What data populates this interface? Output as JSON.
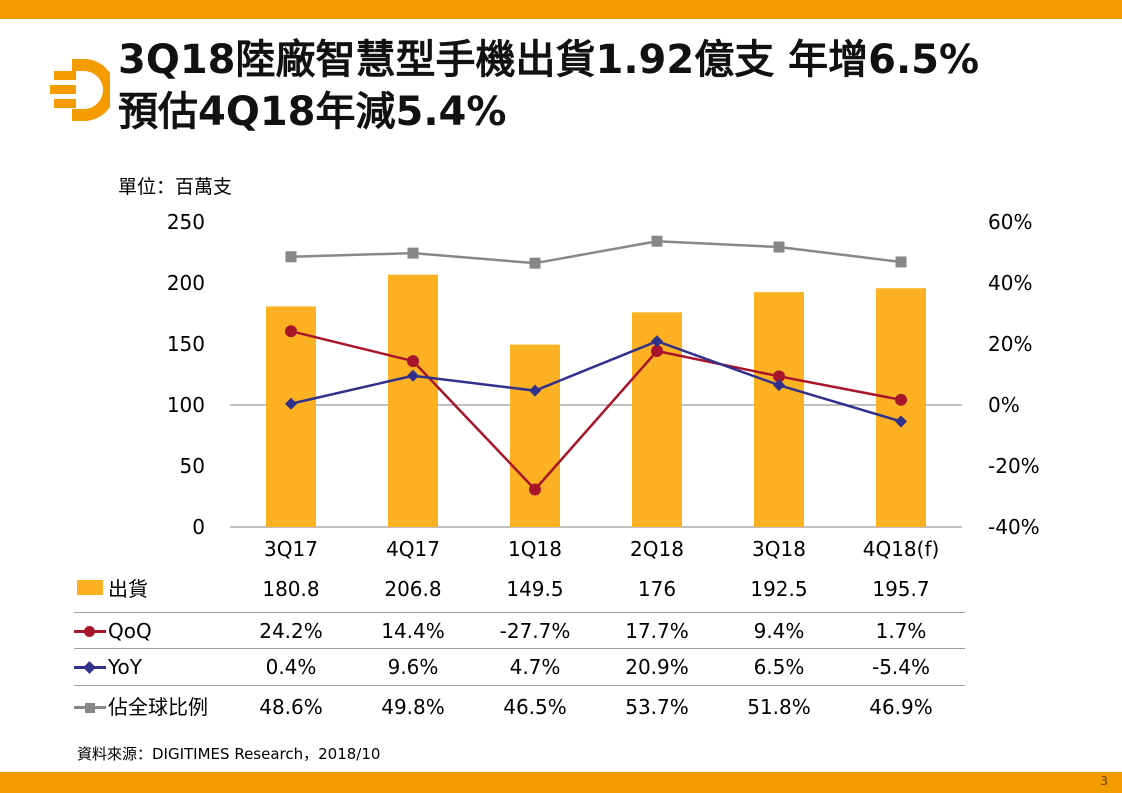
{
  "title_line1": "3Q18陸廠智慧型手機出貨1.92億支  年增6.5%",
  "title_line2": "預估4Q18年減5.4%",
  "unit": "單位：百萬支",
  "source": "資料來源：DIGITIMES Research，2018/10",
  "page_number": "3",
  "colors": {
    "brand": "#f49b00",
    "bar": "#fbb122",
    "qoq": "#a8152b",
    "yoy": "#31318c",
    "share": "#878787"
  },
  "chart_data": {
    "type": "bar",
    "categories": [
      "3Q17",
      "4Q17",
      "1Q18",
      "2Q18",
      "3Q18",
      "4Q18(f)"
    ],
    "left_axis": {
      "min": 0,
      "max": 250,
      "step": 50,
      "ticks": [
        "0",
        "50",
        "100",
        "150",
        "200",
        "250"
      ]
    },
    "right_axis": {
      "min": -40,
      "max": 60,
      "step": 20,
      "ticks": [
        "-40%",
        "-20%",
        "0%",
        "20%",
        "40%",
        "60%"
      ]
    },
    "legend_placement": "bottom-table",
    "series": [
      {
        "name": "出貨",
        "type": "bar",
        "axis": "left",
        "values": [
          180.8,
          206.8,
          149.5,
          176,
          192.5,
          195.7
        ],
        "labels": [
          "180.8",
          "206.8",
          "149.5",
          "176",
          "192.5",
          "195.7"
        ]
      },
      {
        "name": "QoQ",
        "type": "line",
        "marker": "circle",
        "axis": "right",
        "values": [
          24.2,
          14.4,
          -27.7,
          17.7,
          9.4,
          1.7
        ],
        "labels": [
          "24.2%",
          "14.4%",
          "-27.7%",
          "17.7%",
          "9.4%",
          "1.7%"
        ]
      },
      {
        "name": "YoY",
        "type": "line",
        "marker": "diamond",
        "axis": "right",
        "values": [
          0.4,
          9.6,
          4.7,
          20.9,
          6.5,
          -5.4
        ],
        "labels": [
          "0.4%",
          "9.6%",
          "4.7%",
          "20.9%",
          "6.5%",
          "-5.4%"
        ]
      },
      {
        "name": "佔全球比例",
        "type": "line",
        "marker": "square",
        "axis": "right",
        "values": [
          48.6,
          49.8,
          46.5,
          53.7,
          51.8,
          46.9
        ],
        "labels": [
          "48.6%",
          "49.8%",
          "46.5%",
          "53.7%",
          "51.8%",
          "46.9%"
        ]
      }
    ]
  }
}
